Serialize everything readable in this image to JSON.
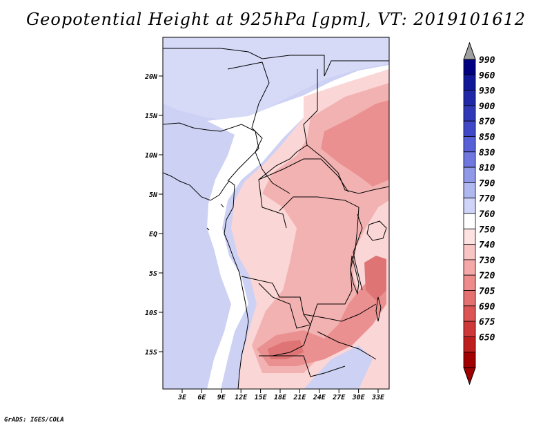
{
  "title": "Geopotential Height at 925hPa [gpm], VT: 2019101612",
  "footer": "GrADS: IGES/COLA",
  "map": {
    "lon_ticks": [
      "3E",
      "6E",
      "9E",
      "12E",
      "15E",
      "18E",
      "21E",
      "24E",
      "27E",
      "30E",
      "33E"
    ],
    "lat_ticks": [
      "20N",
      "15N",
      "10N",
      "5N",
      "EQ",
      "5S",
      "10S",
      "15S"
    ]
  },
  "colorbar": {
    "levels": [
      "990",
      "960",
      "930",
      "900",
      "870",
      "850",
      "830",
      "810",
      "790",
      "770",
      "760",
      "750",
      "740",
      "730",
      "720",
      "705",
      "690",
      "675",
      "650"
    ],
    "colors": [
      "#000080",
      "#101898",
      "#2028a8",
      "#3038b8",
      "#4048c8",
      "#5860d8",
      "#7078e0",
      "#9098e8",
      "#b0b8f0",
      "#d0d4f8",
      "#ffffff",
      "#fde2e2",
      "#f9c4c4",
      "#f4a8a8",
      "#ee8c8c",
      "#e57070",
      "#dc5454",
      "#cf3838",
      "#be1e1e",
      "#a00000"
    ],
    "top_arrow_color": "#a0a0a0",
    "bottom_arrow_color": "#a00000"
  },
  "field": {
    "ocean_color": "#cdd1f4",
    "north_color": "#d6daf7",
    "neutral_color": "#ffffff",
    "light_red": "#fad6d6",
    "mid_red": "#f3b2b2",
    "strong_red": "#ea9090",
    "deep_red": "#de7474"
  }
}
